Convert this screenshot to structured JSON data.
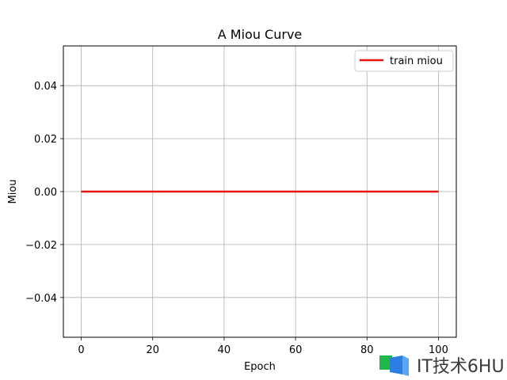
{
  "chart_data": {
    "type": "line",
    "title": "A Miou Curve",
    "xlabel": "Epoch",
    "ylabel": "Miou",
    "xlim": [
      -5,
      105
    ],
    "ylim": [
      -0.055,
      0.055
    ],
    "xticks": [
      0,
      20,
      40,
      60,
      80,
      100
    ],
    "xtick_labels": [
      "0",
      "20",
      "40",
      "60",
      "80",
      "100"
    ],
    "yticks": [
      -0.04,
      -0.02,
      0.0,
      0.02,
      0.04
    ],
    "ytick_labels": [
      "−0.04",
      "−0.02",
      "0.00",
      "0.02",
      "0.04"
    ],
    "grid": true,
    "legend_position": "top-right",
    "series": [
      {
        "name": "train miou",
        "color": "#e8120c",
        "x": [
          0,
          100
        ],
        "y": [
          0.0,
          0.0
        ]
      }
    ]
  },
  "watermark": {
    "text": "IT技术6HU"
  }
}
